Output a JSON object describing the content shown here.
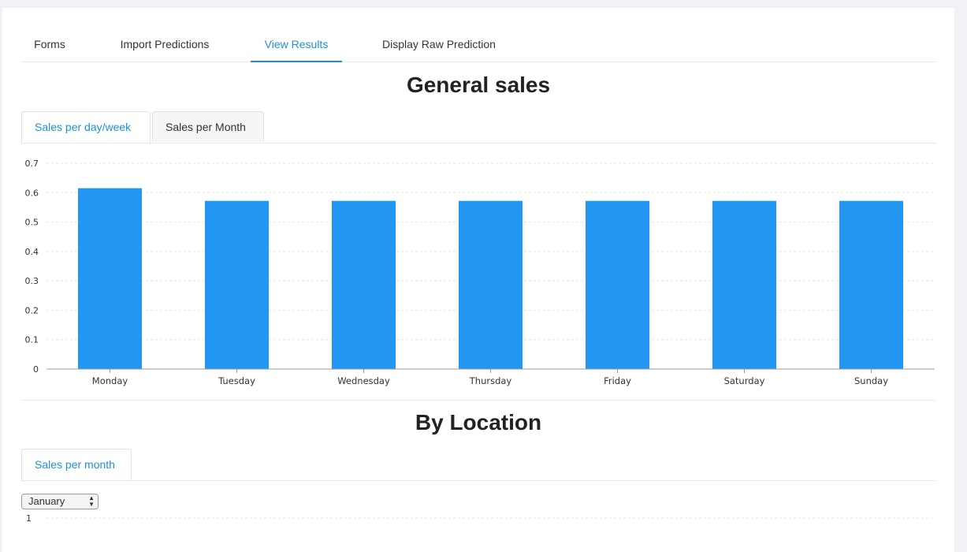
{
  "nav": {
    "tabs": [
      {
        "label": "Forms"
      },
      {
        "label": "Import Predictions"
      },
      {
        "label": "View Results"
      },
      {
        "label": "Display Raw Prediction"
      }
    ]
  },
  "general_sales": {
    "title": "General sales",
    "tabs": [
      {
        "label": "Sales per day/week"
      },
      {
        "label": "Sales per Month"
      }
    ]
  },
  "by_location": {
    "title": "By Location",
    "tabs": [
      {
        "label": "Sales per month"
      }
    ],
    "month_select": {
      "value": "January"
    },
    "chart_top_tick": "1"
  },
  "colors": {
    "accent": "#1e90d8",
    "bar": "#2196f3"
  },
  "chart_data": [
    {
      "type": "bar",
      "categories": [
        "Monday",
        "Tuesday",
        "Wednesday",
        "Thursday",
        "Friday",
        "Saturday",
        "Sunday"
      ],
      "values": [
        0.615,
        0.572,
        0.572,
        0.572,
        0.572,
        0.572,
        0.572
      ],
      "yticks": [
        "0",
        "0.1",
        "0.2",
        "0.3",
        "0.4",
        "0.5",
        "0.6",
        "0.7"
      ],
      "ylim": [
        0,
        0.7
      ],
      "grid": true,
      "title": "",
      "xlabel": "",
      "ylabel": ""
    }
  ]
}
